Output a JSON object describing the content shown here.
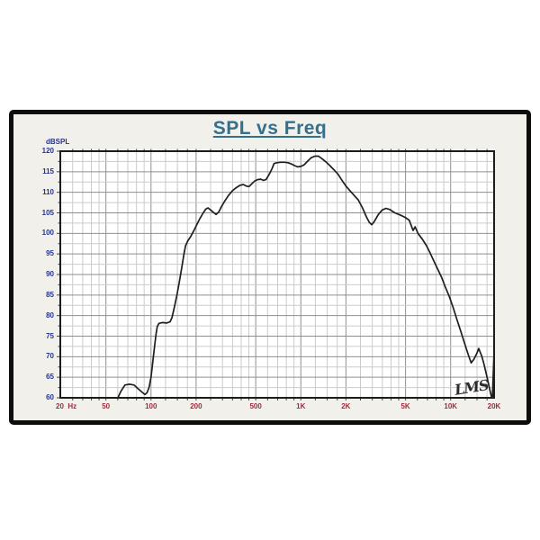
{
  "chart": {
    "title": "SPL vs Freq",
    "watermark": "LMS",
    "frame_background": "#f1f0ea",
    "frame_border_color": "#0d0d0d",
    "plot_background": "#ffffff",
    "plot_border_color": "#1c1c1c",
    "grid_major_color": "#8f8f8f",
    "grid_minor_color": "#cbcbcb",
    "tick_color": "#444444",
    "title_color": "#34708e",
    "y_label_color": "#27348b",
    "x_label_color": "#9e2b3e",
    "curve_color": "#1f1f1f"
  },
  "chart_data": {
    "type": "line",
    "title": "SPL vs Freq",
    "ylabel": "dBSPL",
    "xlabel": "Hz",
    "x_scale": "log",
    "ylim": [
      60,
      120
    ],
    "xlim_hz": [
      24.8,
      19500
    ],
    "grid": "on",
    "y_tick_labels": [
      120,
      115,
      110,
      105,
      100,
      95,
      90,
      85,
      80,
      75,
      70,
      65,
      60
    ],
    "y_minor_step_db": 2.5,
    "x_ticks": [
      {
        "label": "20  Hz",
        "hz": 20
      },
      {
        "label": "50",
        "hz": 50
      },
      {
        "label": "100",
        "hz": 100
      },
      {
        "label": "200",
        "hz": 200
      },
      {
        "label": "500",
        "hz": 500
      },
      {
        "label": "1K",
        "hz": 1000
      },
      {
        "label": "2K",
        "hz": 2000
      },
      {
        "label": "5K",
        "hz": 5000
      },
      {
        "label": "10K",
        "hz": 10000
      },
      {
        "label": "20K",
        "hz": 20000
      }
    ],
    "x_major_multipliers": [
      1,
      2,
      5
    ],
    "x_minor_multipliers": [
      1.25,
      1.5,
      1.75,
      2.5,
      3,
      3.5,
      4,
      4.5,
      6,
      7,
      8,
      9
    ],
    "series": [
      {
        "name": "SPL",
        "points_hz_db": [
          [
            59,
            59.4
          ],
          [
            63,
            61.6
          ],
          [
            67,
            63.1
          ],
          [
            72,
            63.3
          ],
          [
            77,
            63.1
          ],
          [
            82,
            62.2
          ],
          [
            87,
            61.4
          ],
          [
            91,
            60.8
          ],
          [
            94,
            61.2
          ],
          [
            97,
            62.5
          ],
          [
            100,
            65.0
          ],
          [
            103,
            69.0
          ],
          [
            106,
            73.0
          ],
          [
            108,
            75.5
          ],
          [
            110,
            77.3
          ],
          [
            113,
            78.1
          ],
          [
            119,
            78.3
          ],
          [
            127,
            78.2
          ],
          [
            134,
            78.5
          ],
          [
            138,
            79.5
          ],
          [
            143,
            82.0
          ],
          [
            149,
            85.0
          ],
          [
            155,
            88.5
          ],
          [
            161,
            92.0
          ],
          [
            166,
            95.0
          ],
          [
            170,
            97.0
          ],
          [
            176,
            98.2
          ],
          [
            183,
            99.1
          ],
          [
            192,
            100.5
          ],
          [
            202,
            102.1
          ],
          [
            212,
            103.6
          ],
          [
            222,
            104.9
          ],
          [
            232,
            105.9
          ],
          [
            240,
            106.2
          ],
          [
            250,
            105.7
          ],
          [
            261,
            105.1
          ],
          [
            272,
            104.6
          ],
          [
            283,
            105.2
          ],
          [
            296,
            106.6
          ],
          [
            312,
            108.0
          ],
          [
            330,
            109.3
          ],
          [
            350,
            110.4
          ],
          [
            370,
            111.1
          ],
          [
            392,
            111.7
          ],
          [
            413,
            111.9
          ],
          [
            433,
            111.5
          ],
          [
            451,
            111.4
          ],
          [
            469,
            112.0
          ],
          [
            491,
            112.7
          ],
          [
            516,
            113.1
          ],
          [
            541,
            113.2
          ],
          [
            563,
            112.9
          ],
          [
            586,
            113.1
          ],
          [
            606,
            114.0
          ],
          [
            626,
            114.9
          ],
          [
            646,
            116.0
          ],
          [
            663,
            117.0
          ],
          [
            692,
            117.2
          ],
          [
            733,
            117.3
          ],
          [
            777,
            117.3
          ],
          [
            822,
            117.2
          ],
          [
            867,
            116.9
          ],
          [
            908,
            116.5
          ],
          [
            952,
            116.2
          ],
          [
            1002,
            116.3
          ],
          [
            1052,
            116.7
          ],
          [
            1112,
            117.6
          ],
          [
            1172,
            118.4
          ],
          [
            1242,
            118.8
          ],
          [
            1312,
            118.8
          ],
          [
            1392,
            118.1
          ],
          [
            1472,
            117.4
          ],
          [
            1562,
            116.5
          ],
          [
            1662,
            115.5
          ],
          [
            1772,
            114.4
          ],
          [
            1882,
            112.9
          ],
          [
            1992,
            111.6
          ],
          [
            2102,
            110.6
          ],
          [
            2252,
            109.4
          ],
          [
            2412,
            108.2
          ],
          [
            2572,
            106.3
          ],
          [
            2742,
            104.0
          ],
          [
            2862,
            102.7
          ],
          [
            2972,
            102.1
          ],
          [
            3092,
            102.9
          ],
          [
            3292,
            104.6
          ],
          [
            3492,
            105.7
          ],
          [
            3702,
            106.1
          ],
          [
            3922,
            105.8
          ],
          [
            4242,
            105.0
          ],
          [
            4592,
            104.5
          ],
          [
            4962,
            103.9
          ],
          [
            5292,
            103.2
          ],
          [
            5612,
            100.7
          ],
          [
            5792,
            101.6
          ],
          [
            6072,
            99.9
          ],
          [
            6462,
            98.6
          ],
          [
            6902,
            97.0
          ],
          [
            7302,
            95.2
          ],
          [
            7702,
            93.4
          ],
          [
            8202,
            91.3
          ],
          [
            8702,
            89.3
          ],
          [
            9202,
            87.0
          ],
          [
            9802,
            84.6
          ],
          [
            10402,
            81.9
          ],
          [
            11002,
            79.1
          ],
          [
            11702,
            76.1
          ],
          [
            12402,
            73.2
          ],
          [
            13102,
            70.5
          ],
          [
            13702,
            68.5
          ],
          [
            14302,
            69.4
          ],
          [
            15002,
            70.9
          ],
          [
            15402,
            72.0
          ],
          [
            16102,
            70.2
          ],
          [
            16602,
            68.5
          ],
          [
            17202,
            66.2
          ],
          [
            17802,
            63.8
          ],
          [
            18302,
            61.8
          ],
          [
            18702,
            60.3
          ],
          [
            19002,
            60.1
          ],
          [
            19500,
            71.5
          ]
        ]
      }
    ]
  }
}
